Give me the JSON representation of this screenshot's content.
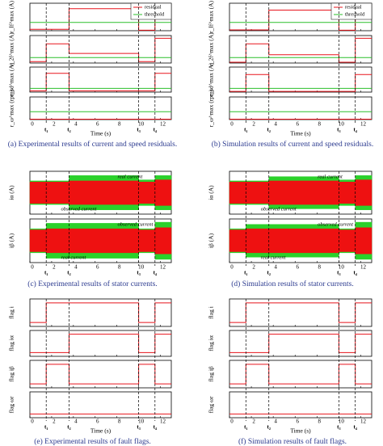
{
  "chart_data": [
    {
      "type": "line",
      "caption": "(a) Experimental results of current and speed residuals.",
      "xlabel": "Time (s)",
      "xlim": [
        0,
        13
      ],
      "xticks": [
        0,
        2,
        4,
        6,
        8,
        10,
        12
      ],
      "events": [
        {
          "value": 1.5,
          "label": "t₁"
        },
        {
          "value": 3.6,
          "label": "t₂"
        },
        {
          "value": 10,
          "label": "t₃"
        },
        {
          "value": 11.5,
          "label": "t₄"
        }
      ],
      "subplots": [
        {
          "ylabel": "r_If^max (A)",
          "ylim": [
            0,
            1
          ],
          "x": [
            0,
            3.6,
            3.6,
            10,
            10,
            11.5,
            11.5,
            13
          ],
          "series": [
            {
              "name": "residual",
              "color": "#e8141c",
              "values": [
                0.05,
                0.05,
                0.8,
                0.8,
                0.02,
                0.02,
                0.85,
                0.85
              ]
            },
            {
              "name": "threshold",
              "color": "#2bbf2b",
              "values": [
                0.3,
                0.3,
                0.3,
                0.3,
                0.3,
                0.3,
                0.3,
                0.3
              ]
            }
          ]
        },
        {
          "ylabel": "r_2f^max (A)",
          "ylim": [
            0,
            1
          ],
          "x": [
            0,
            1.5,
            1.5,
            3.6,
            3.6,
            10,
            10,
            11.5,
            11.5,
            13
          ],
          "series": [
            {
              "color": "#e8141c",
              "values": [
                0.05,
                0.05,
                0.7,
                0.7,
                0.35,
                0.35,
                0.05,
                0.05,
                0.9,
                0.9
              ]
            },
            {
              "color": "#2bbf2b",
              "values": [
                0.2,
                0.2,
                0.2,
                0.2,
                0.2,
                0.2,
                0.2,
                0.2,
                0.2,
                0.2
              ]
            }
          ]
        },
        {
          "ylabel": "r_sd^max (A)",
          "ylim": [
            0,
            1
          ],
          "x": [
            0,
            1.5,
            1.5,
            3.6,
            3.6,
            11.5,
            11.5,
            13
          ],
          "series": [
            {
              "color": "#e8141c",
              "values": [
                0.05,
                0.05,
                0.75,
                0.75,
                0.05,
                0.05,
                0.75,
                0.75
              ]
            },
            {
              "color": "#2bbf2b",
              "values": [
                0.15,
                0.15,
                0.15,
                0.15,
                0.15,
                0.15,
                0.15,
                0.15
              ]
            }
          ]
        },
        {
          "ylabel": "r_ω^max (rpm)",
          "ylim": [
            0,
            1
          ],
          "x": [
            0,
            13
          ],
          "series": [
            {
              "color": "#e8141c",
              "values": [
                0.02,
                0.02
              ]
            },
            {
              "color": "#2bbf2b",
              "values": [
                0.35,
                0.35
              ]
            }
          ]
        }
      ]
    },
    {
      "type": "line",
      "caption": "(b) Simulation results of current and speed residuals.",
      "xlabel": "Time (s)",
      "xlim": [
        0,
        13
      ],
      "xticks": [
        0,
        2,
        4,
        6,
        8,
        10,
        12
      ],
      "events": [
        {
          "value": 1.5,
          "label": "t₁"
        },
        {
          "value": 3.6,
          "label": "t₂"
        },
        {
          "value": 10,
          "label": "t₃"
        },
        {
          "value": 11.5,
          "label": "t₄"
        }
      ],
      "subplots": [
        {
          "ylabel": "r_If^max (A)",
          "ylim": [
            0,
            1
          ],
          "x": [
            0,
            3.6,
            3.6,
            10,
            10,
            11.5,
            11.5,
            13
          ],
          "series": [
            {
              "name": "residual",
              "color": "#e8141c",
              "values": [
                0.03,
                0.03,
                0.75,
                0.75,
                0.02,
                0.02,
                0.8,
                0.8
              ]
            },
            {
              "name": "threshold",
              "color": "#2bbf2b",
              "values": [
                0.3,
                0.3,
                0.3,
                0.3,
                0.3,
                0.3,
                0.3,
                0.3
              ]
            }
          ]
        },
        {
          "ylabel": "r_2f^max (A)",
          "ylim": [
            0,
            1
          ],
          "x": [
            0,
            1.5,
            1.5,
            3.6,
            3.6,
            10,
            10,
            11.5,
            11.5,
            13
          ],
          "series": [
            {
              "color": "#e8141c",
              "values": [
                0.03,
                0.03,
                0.7,
                0.7,
                0.3,
                0.3,
                0.03,
                0.03,
                0.9,
                0.9
              ]
            },
            {
              "color": "#2bbf2b",
              "values": [
                0.2,
                0.2,
                0.2,
                0.2,
                0.2,
                0.2,
                0.2,
                0.2,
                0.2,
                0.2
              ]
            }
          ]
        },
        {
          "ylabel": "r_sd^max (A)",
          "ylim": [
            0,
            1
          ],
          "x": [
            0,
            1.5,
            1.5,
            3.6,
            3.6,
            11.5,
            11.5,
            13
          ],
          "series": [
            {
              "color": "#e8141c",
              "values": [
                0.03,
                0.03,
                0.7,
                0.7,
                0.03,
                0.03,
                0.7,
                0.7
              ]
            },
            {
              "color": "#2bbf2b",
              "values": [
                0.15,
                0.15,
                0.15,
                0.15,
                0.15,
                0.15,
                0.15,
                0.15
              ]
            }
          ]
        },
        {
          "ylabel": "r_ω^max (rpm)",
          "ylim": [
            0,
            1
          ],
          "x": [
            0,
            13
          ],
          "series": [
            {
              "color": "#e8141c",
              "values": [
                0.02,
                0.02
              ]
            },
            {
              "color": "#2bbf2b",
              "values": [
                0.35,
                0.35
              ]
            }
          ]
        }
      ]
    },
    {
      "type": "area",
      "caption": "(c) Experimental results of stator currents.",
      "xlim": [
        0,
        13
      ],
      "xticks": [
        0,
        2,
        4,
        6,
        8,
        10,
        12
      ],
      "events": [
        {
          "value": 1.5,
          "label": "t₁"
        },
        {
          "value": 3.6,
          "label": "t₂"
        },
        {
          "value": 10,
          "label": "t₃"
        },
        {
          "value": 11.5,
          "label": "t₄"
        }
      ],
      "subplots": [
        {
          "ylabel": "iα (A)",
          "ylim": [
            -1,
            1
          ],
          "annotations": [
            "observed current",
            "real current"
          ],
          "x": [
            0,
            3.6,
            3.6,
            10,
            10,
            11.5,
            11.5,
            13
          ],
          "series": [
            {
              "color": "#2bd12b",
              "values": [
                0.55,
                0.55,
                0.8,
                0.8,
                0.6,
                0.6,
                0.8,
                0.8
              ]
            },
            {
              "color": "#ee1111",
              "values": [
                0.5,
                0.5,
                0.55,
                0.55,
                0.5,
                0.5,
                0.6,
                0.6
              ]
            }
          ]
        },
        {
          "ylabel": "iβ (A)",
          "ylim": [
            -1,
            1
          ],
          "annotations": [
            "real current",
            "observed current"
          ],
          "x": [
            0,
            1.5,
            1.5,
            10,
            10,
            11.5,
            11.5,
            13
          ],
          "series": [
            {
              "color": "#2bd12b",
              "values": [
                0.55,
                0.55,
                0.8,
                0.8,
                0.55,
                0.55,
                0.85,
                0.85
              ]
            },
            {
              "color": "#ee1111",
              "values": [
                0.5,
                0.5,
                0.55,
                0.55,
                0.5,
                0.5,
                0.6,
                0.6
              ]
            }
          ]
        }
      ]
    },
    {
      "type": "area",
      "caption": "(d) Simulation results of stator currents.",
      "xlim": [
        0,
        13
      ],
      "xticks": [
        0,
        2,
        4,
        6,
        8,
        10,
        12
      ],
      "events": [
        {
          "value": 1.5,
          "label": "t₁"
        },
        {
          "value": 3.6,
          "label": "t₂"
        },
        {
          "value": 10,
          "label": "t₃"
        },
        {
          "value": 11.5,
          "label": "t₄"
        }
      ],
      "subplots": [
        {
          "ylabel": "iα (A)",
          "ylim": [
            -1,
            1
          ],
          "annotations": [
            "observed current",
            "real current"
          ],
          "x": [
            0,
            3.6,
            3.6,
            10,
            10,
            11.5,
            11.5,
            13
          ],
          "series": [
            {
              "color": "#2bd12b",
              "values": [
                0.55,
                0.55,
                0.75,
                0.75,
                0.6,
                0.6,
                0.8,
                0.8
              ]
            },
            {
              "color": "#ee1111",
              "values": [
                0.5,
                0.5,
                0.55,
                0.55,
                0.5,
                0.5,
                0.6,
                0.6
              ]
            }
          ]
        },
        {
          "ylabel": "iβ (A)",
          "ylim": [
            -1,
            1
          ],
          "annotations": [
            "real current",
            "observed current"
          ],
          "x": [
            0,
            1.5,
            1.5,
            10,
            10,
            11.5,
            11.5,
            13
          ],
          "series": [
            {
              "color": "#2bd12b",
              "values": [
                0.55,
                0.55,
                0.75,
                0.75,
                0.55,
                0.55,
                0.85,
                0.85
              ]
            },
            {
              "color": "#ee1111",
              "values": [
                0.5,
                0.5,
                0.55,
                0.55,
                0.5,
                0.5,
                0.6,
                0.6
              ]
            }
          ]
        }
      ]
    },
    {
      "type": "line",
      "caption": "(e) Experimental results of fault flags.",
      "xlabel": "Time (s)",
      "xlim": [
        0,
        13
      ],
      "xticks": [
        0,
        2,
        4,
        6,
        8,
        10,
        12
      ],
      "events": [
        {
          "value": 1.5,
          "label": "t₁"
        },
        {
          "value": 3.6,
          "label": "t₂"
        },
        {
          "value": 10,
          "label": "t₃"
        },
        {
          "value": 11.5,
          "label": "t₄"
        }
      ],
      "subplots": [
        {
          "ylabel": "flag i",
          "ylim": [
            -0.2,
            1.2
          ],
          "x": [
            0,
            1.5,
            1.5,
            10,
            10,
            11.5,
            11.5,
            13
          ],
          "series": [
            {
              "color": "#e8141c",
              "values": [
                0,
                0,
                1,
                1,
                0,
                0,
                1,
                1
              ]
            }
          ]
        },
        {
          "ylabel": "flag iα",
          "ylim": [
            -0.2,
            1.2
          ],
          "x": [
            0,
            3.6,
            3.6,
            10,
            10,
            11.5,
            11.5,
            13
          ],
          "series": [
            {
              "color": "#e8141c",
              "values": [
                0,
                0,
                1,
                1,
                0,
                0,
                1,
                1
              ]
            }
          ]
        },
        {
          "ylabel": "flag iβ",
          "ylim": [
            -0.2,
            1.2
          ],
          "x": [
            0,
            1.5,
            1.5,
            3.6,
            3.6,
            10,
            10,
            11.5,
            11.5,
            13
          ],
          "series": [
            {
              "color": "#e8141c",
              "values": [
                0,
                0,
                1,
                1,
                0,
                0,
                1,
                1,
                0,
                0
              ]
            }
          ]
        },
        {
          "ylabel": "flag ωr",
          "ylim": [
            -0.2,
            1.2
          ],
          "x": [
            0,
            13
          ],
          "series": [
            {
              "color": "#e8141c",
              "values": [
                0,
                0
              ]
            }
          ]
        }
      ]
    },
    {
      "type": "line",
      "caption": "(f) Simulation results of fault flags.",
      "xlabel": "Time (s)",
      "xlim": [
        0,
        13
      ],
      "xticks": [
        0,
        2,
        4,
        6,
        8,
        10,
        12
      ],
      "events": [
        {
          "value": 1.5,
          "label": "t₁"
        },
        {
          "value": 3.6,
          "label": "t₂"
        },
        {
          "value": 10,
          "label": "t₃"
        },
        {
          "value": 11.5,
          "label": "t₄"
        }
      ],
      "subplots": [
        {
          "ylabel": "flag i",
          "ylim": [
            -0.2,
            1.2
          ],
          "x": [
            0,
            1.5,
            1.5,
            10,
            10,
            11.5,
            11.5,
            13
          ],
          "series": [
            {
              "color": "#e8141c",
              "values": [
                0,
                0,
                1,
                1,
                0,
                0,
                1,
                1
              ]
            }
          ]
        },
        {
          "ylabel": "flag iα",
          "ylim": [
            -0.2,
            1.2
          ],
          "x": [
            0,
            3.6,
            3.6,
            10,
            10,
            11.5,
            11.5,
            13
          ],
          "series": [
            {
              "color": "#e8141c",
              "values": [
                0,
                0,
                1,
                1,
                0,
                0,
                1,
                1
              ]
            }
          ]
        },
        {
          "ylabel": "flag iβ",
          "ylim": [
            -0.2,
            1.2
          ],
          "x": [
            0,
            1.5,
            1.5,
            3.6,
            3.6,
            10,
            10,
            11.5,
            11.5,
            13
          ],
          "series": [
            {
              "color": "#e8141c",
              "values": [
                0,
                0,
                1,
                1,
                0,
                0,
                1,
                1,
                0,
                0
              ]
            }
          ]
        },
        {
          "ylabel": "flag ωr",
          "ylim": [
            -0.2,
            1.2
          ],
          "x": [
            0,
            13
          ],
          "series": [
            {
              "color": "#e8141c",
              "values": [
                0,
                0
              ]
            }
          ]
        }
      ]
    }
  ]
}
